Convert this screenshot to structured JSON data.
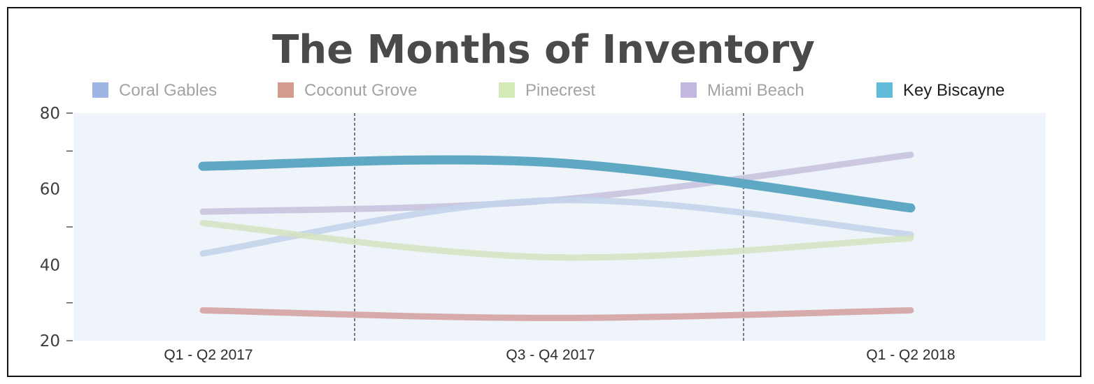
{
  "chart_data": {
    "type": "line",
    "title": "The Months of Inventory",
    "categories": [
      "Q1 - Q2 2017",
      "Q3 - Q4 2017",
      "Q1 - Q2 2018"
    ],
    "ylim": [
      20,
      80
    ],
    "yticks": [
      80,
      60,
      40,
      20
    ],
    "legend_position": "top",
    "series": [
      {
        "name": "Coral Gables",
        "values": [
          43,
          57,
          48
        ],
        "color": "#9fb5e3",
        "line_color": "#c3d4ea"
      },
      {
        "name": "Coconut Grove",
        "values": [
          28,
          26,
          28
        ],
        "color": "#d39a8e",
        "line_color": "#d4a3a3"
      },
      {
        "name": "Pinecrest",
        "values": [
          51,
          42,
          47
        ],
        "color": "#d3eab6",
        "line_color": "#d4e3c3"
      },
      {
        "name": "Miami Beach",
        "values": [
          54,
          57,
          69
        ],
        "color": "#c3b6e1",
        "line_color": "#c9c3df"
      },
      {
        "name": "Key Biscayne",
        "values": [
          66,
          67,
          55
        ],
        "color": "#61bcd9",
        "line_color": "#5fa8c3"
      }
    ]
  }
}
